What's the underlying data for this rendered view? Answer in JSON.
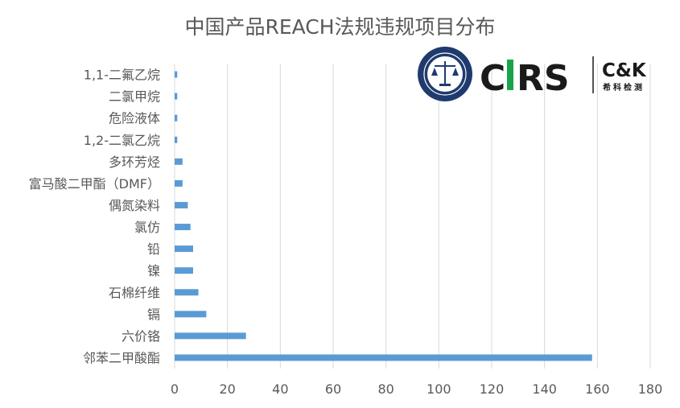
{
  "chart_data": {
    "type": "bar",
    "orientation": "horizontal",
    "title": "中国产品REACH法规违规项目分布",
    "categories": [
      "邻苯二甲酸酯",
      "六价铬",
      "镉",
      "石棉纤维",
      "镍",
      "铅",
      "氯仿",
      "偶氮染料",
      "富马酸二甲酯（DMF）",
      "多环芳烃",
      "1,2-二氯乙烷",
      "危险液体",
      "二氯甲烷",
      "1,1-二氟乙烷"
    ],
    "values": [
      158,
      27,
      12,
      9,
      7,
      7,
      6,
      5,
      3,
      3,
      1,
      1,
      1,
      1
    ],
    "xlim": [
      0,
      180
    ],
    "xticks": [
      "0",
      "20",
      "40",
      "60",
      "80",
      "100",
      "120",
      "140",
      "160",
      "180"
    ],
    "grid": "vertical",
    "legend": "none",
    "bar_color": "#5b9bd5",
    "grid_color": "#d9d9d9"
  },
  "logo": {
    "brand": "CIRS",
    "partner": "C&K",
    "partner_subtitle": "希科检测",
    "colors": {
      "navy": "#1f3b6e",
      "dark": "#1a1a1a",
      "green": "#1aa34a"
    }
  }
}
